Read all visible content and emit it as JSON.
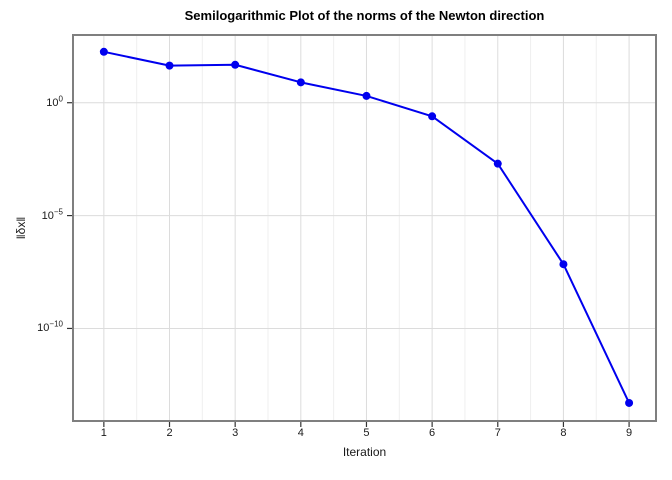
{
  "figure": {
    "background": "#ffffff"
  },
  "chart_data": {
    "type": "line",
    "title": "Semilogarithmic Plot of the norms of the Newton direction",
    "xlabel": "Iteration",
    "ylabel": "‖δx‖",
    "yscale": "log10",
    "legend": "none",
    "grid": true,
    "x": [
      1,
      2,
      3,
      4,
      5,
      6,
      7,
      8,
      9
    ],
    "values": [
      180,
      44,
      48,
      8.0,
      2.0,
      0.25,
      0.002,
      7e-08,
      5e-14
    ],
    "xlim": [
      0.53,
      9.41
    ],
    "ylog_range": [
      3,
      -14.1
    ],
    "xticks": [
      1,
      2,
      3,
      4,
      5,
      6,
      7,
      8,
      9
    ],
    "x_minor_gridlines": [
      1.5,
      2.5,
      3.5,
      4.5,
      5.5,
      6.5,
      7.5,
      8.5
    ],
    "yticks": [
      {
        "log": 0,
        "base": "10",
        "exp_label": "0"
      },
      {
        "log": -5,
        "base": "10",
        "exp_label": "−5"
      },
      {
        "log": -10,
        "base": "10",
        "exp_label": "−10"
      }
    ],
    "colors": {
      "line": "#0000ee",
      "marker": "#0000ee",
      "frame": "#7f7f7f",
      "tick": "#333333",
      "grid_major": "#dcdcdc",
      "grid_minor": "#efefef",
      "text": "#1a1a1a",
      "title": "#000000"
    },
    "marker": "circle",
    "marker_radius": 4,
    "line_width": 2
  }
}
